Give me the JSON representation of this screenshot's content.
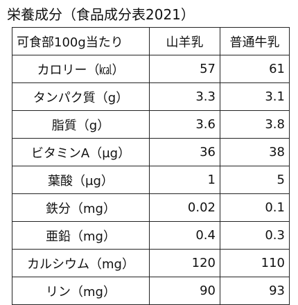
{
  "title": "栄養成分（食品成分表2021）",
  "table": {
    "header": {
      "label": "可食部100g当たり",
      "columns": [
        "山羊乳",
        "普通牛乳"
      ]
    },
    "rows": [
      {
        "label": "カロリー（㎉）",
        "goat": "57",
        "cow": "61"
      },
      {
        "label": "タンパク質（g）",
        "goat": "3.3",
        "cow": "3.1"
      },
      {
        "label": "脂質（g）",
        "goat": "3.6",
        "cow": "3.8"
      },
      {
        "label": "ビタミンA（μg）",
        "goat": "36",
        "cow": "38"
      },
      {
        "label": "葉酸（μg）",
        "goat": "1",
        "cow": "5"
      },
      {
        "label": "鉄分（mg）",
        "goat": "0.02",
        "cow": "0.1"
      },
      {
        "label": "亜鉛（mg）",
        "goat": "0.4",
        "cow": "0.3"
      },
      {
        "label": "カルシウム（mg）",
        "goat": "120",
        "cow": "110"
      },
      {
        "label": "リン（mg）",
        "goat": "90",
        "cow": "93"
      }
    ]
  }
}
